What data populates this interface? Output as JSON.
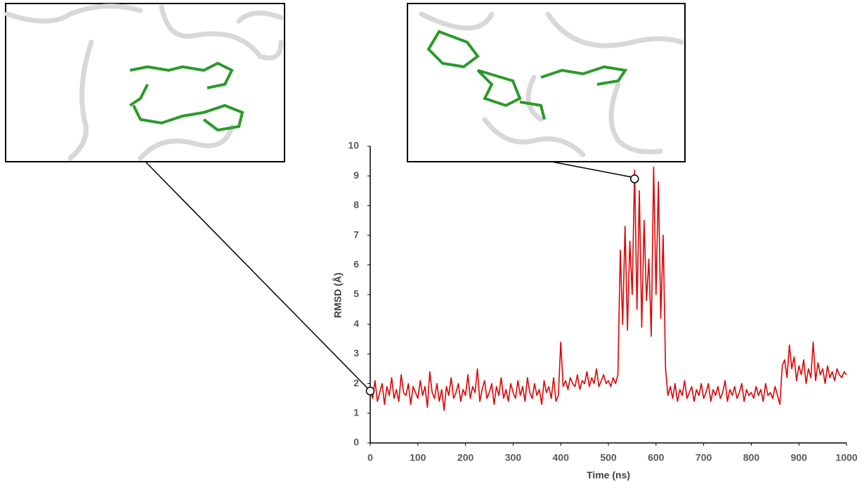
{
  "chart_data": {
    "type": "line",
    "x_label": "Time (ns)",
    "y_label": "RMSD (Å)",
    "color": "#e00000",
    "xlim": [
      0,
      1000
    ],
    "xticks": [
      0,
      100,
      200,
      300,
      400,
      500,
      600,
      700,
      800,
      900,
      1000
    ],
    "ylim": [
      0,
      10
    ],
    "yticks": [
      0,
      1,
      2,
      3,
      4,
      5,
      6,
      7,
      8,
      9,
      10
    ],
    "x": [
      0,
      5,
      10,
      15,
      20,
      25,
      30,
      35,
      40,
      45,
      50,
      55,
      60,
      65,
      70,
      75,
      80,
      85,
      90,
      95,
      100,
      105,
      110,
      115,
      120,
      125,
      130,
      135,
      140,
      145,
      150,
      155,
      160,
      165,
      170,
      175,
      180,
      185,
      190,
      195,
      200,
      205,
      210,
      215,
      220,
      225,
      230,
      235,
      240,
      245,
      250,
      255,
      260,
      265,
      270,
      275,
      280,
      285,
      290,
      295,
      300,
      305,
      310,
      315,
      320,
      325,
      330,
      335,
      340,
      345,
      350,
      355,
      360,
      365,
      370,
      375,
      380,
      385,
      390,
      395,
      400,
      405,
      410,
      415,
      420,
      425,
      430,
      435,
      440,
      445,
      450,
      455,
      460,
      465,
      470,
      475,
      480,
      485,
      490,
      495,
      500,
      505,
      510,
      515,
      520,
      525,
      530,
      535,
      540,
      545,
      550,
      555,
      560,
      565,
      570,
      575,
      580,
      585,
      590,
      595,
      600,
      605,
      610,
      615,
      620,
      625,
      630,
      635,
      640,
      645,
      650,
      655,
      660,
      665,
      670,
      675,
      680,
      685,
      690,
      695,
      700,
      705,
      710,
      715,
      720,
      725,
      730,
      735,
      740,
      745,
      750,
      755,
      760,
      765,
      770,
      775,
      780,
      785,
      790,
      795,
      800,
      805,
      810,
      815,
      820,
      825,
      830,
      835,
      840,
      845,
      850,
      855,
      860,
      865,
      870,
      875,
      880,
      885,
      890,
      895,
      900,
      905,
      910,
      915,
      920,
      925,
      930,
      935,
      940,
      945,
      950,
      955,
      960,
      965,
      970,
      975,
      980,
      985,
      990,
      995,
      1000
    ],
    "values": [
      1.8,
      1.5,
      2.1,
      1.4,
      1.7,
      2.0,
      1.3,
      1.9,
      1.6,
      2.2,
      1.5,
      1.8,
      1.4,
      2.3,
      1.7,
      1.6,
      2.0,
      1.3,
      1.9,
      1.7,
      1.5,
      2.1,
      1.6,
      1.9,
      1.2,
      2.4,
      1.7,
      1.5,
      2.0,
      1.4,
      1.8,
      1.1,
      1.9,
      1.6,
      2.2,
      1.5,
      1.7,
      2.0,
      1.4,
      1.8,
      1.6,
      2.3,
      1.5,
      1.9,
      1.7,
      2.5,
      1.4,
      1.8,
      2.1,
      1.5,
      1.7,
      2.0,
      1.3,
      1.9,
      1.6,
      2.2,
      1.5,
      1.8,
      1.4,
      2.0,
      1.7,
      1.5,
      2.1,
      1.6,
      1.9,
      1.4,
      2.2,
      1.7,
      1.5,
      2.0,
      1.6,
      1.8,
      1.3,
      2.1,
      1.7,
      1.9,
      1.5,
      2.2,
      1.4,
      1.6,
      3.4,
      1.9,
      2.1,
      1.8,
      2.2,
      2.0,
      1.9,
      2.3,
      1.8,
      2.1,
      2.0,
      2.4,
      1.9,
      2.2,
      2.0,
      2.5,
      1.9,
      2.1,
      2.3,
      2.0,
      2.1,
      1.9,
      2.2,
      2.0,
      2.3,
      6.5,
      4.0,
      7.3,
      3.8,
      6.8,
      5.0,
      9.2,
      4.5,
      8.5,
      3.9,
      7.5,
      4.8,
      6.2,
      3.6,
      9.3,
      5.0,
      8.8,
      4.2,
      7.0,
      2.5,
      1.6,
      1.9,
      1.5,
      2.0,
      1.4,
      1.8,
      1.6,
      2.1,
      1.5,
      1.7,
      1.9,
      1.4,
      1.8,
      1.6,
      2.0,
      1.5,
      1.7,
      2.0,
      1.4,
      1.8,
      1.6,
      1.9,
      1.5,
      1.7,
      2.1,
      1.4,
      1.8,
      1.6,
      1.9,
      1.5,
      1.7,
      2.0,
      1.4,
      1.8,
      1.6,
      1.7,
      1.5,
      1.9,
      1.6,
      1.8,
      1.4,
      2.0,
      1.6,
      1.7,
      1.5,
      1.9,
      1.6,
      1.3,
      2.6,
      2.8,
      2.2,
      3.3,
      2.5,
      2.9,
      2.1,
      2.6,
      2.3,
      2.8,
      2.0,
      2.5,
      2.2,
      3.4,
      2.1,
      2.7,
      2.3,
      2.5,
      2.0,
      2.6,
      2.2,
      2.4,
      2.1,
      2.5,
      2.3,
      2.2,
      2.4,
      2.3
    ],
    "highlights": [
      {
        "x": 0,
        "y": 1.75
      },
      {
        "x": 555,
        "y": 8.9
      }
    ]
  }
}
